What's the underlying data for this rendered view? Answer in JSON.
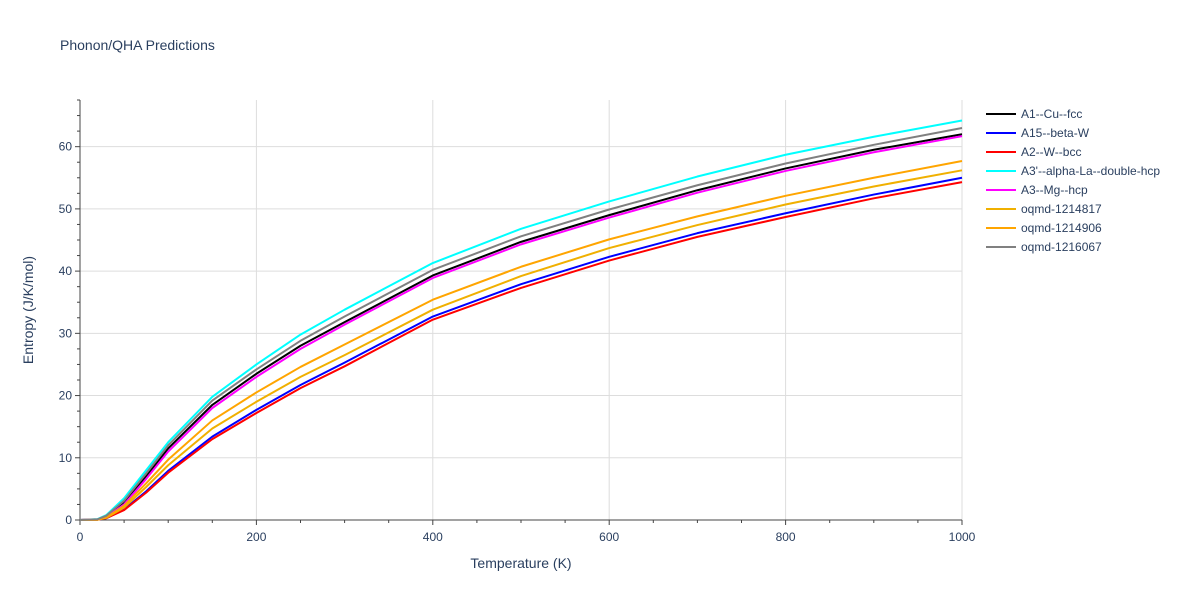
{
  "chart_data": {
    "type": "line",
    "title": "Phonon/QHA Predictions",
    "xlabel": "Temperature (K)",
    "ylabel": "Entropy (J/K/mol)",
    "xlim": [
      0,
      1000
    ],
    "ylim": [
      0,
      67.5
    ],
    "xticks": [
      0,
      200,
      400,
      600,
      800,
      1000
    ],
    "yticks": [
      0,
      10,
      20,
      30,
      40,
      50,
      60
    ],
    "grid": true,
    "legend_position": "right",
    "series": [
      {
        "name": "A1--Cu--fcc",
        "color": "#000000",
        "x": [
          0,
          20,
          30,
          50,
          75,
          100,
          150,
          200,
          250,
          300,
          400,
          500,
          600,
          700,
          800,
          900,
          1000
        ],
        "y": [
          0,
          0.1,
          0.6,
          2.8,
          7.0,
          11.5,
          18.5,
          23.5,
          28.0,
          31.8,
          39.3,
          44.7,
          49.0,
          53.0,
          56.5,
          59.5,
          62.0
        ]
      },
      {
        "name": "A15--beta-W",
        "color": "#0000ff",
        "x": [
          0,
          20,
          30,
          50,
          75,
          100,
          150,
          200,
          250,
          300,
          400,
          500,
          600,
          700,
          800,
          900,
          1000
        ],
        "y": [
          0,
          0.05,
          0.3,
          1.7,
          4.6,
          7.9,
          13.4,
          17.7,
          21.7,
          25.3,
          32.7,
          37.9,
          42.3,
          46.1,
          49.3,
          52.3,
          55.0
        ]
      },
      {
        "name": "A2--W--bcc",
        "color": "#ff0000",
        "x": [
          0,
          20,
          30,
          50,
          75,
          100,
          150,
          200,
          250,
          300,
          400,
          500,
          600,
          700,
          800,
          900,
          1000
        ],
        "y": [
          0,
          0.05,
          0.3,
          1.6,
          4.4,
          7.6,
          13.0,
          17.2,
          21.2,
          24.7,
          32.2,
          37.3,
          41.7,
          45.5,
          48.7,
          51.7,
          54.3
        ]
      },
      {
        "name": "A3'--alpha-La--double-hcp",
        "color": "#00ffff",
        "x": [
          0,
          20,
          30,
          50,
          75,
          100,
          150,
          200,
          250,
          300,
          400,
          500,
          600,
          700,
          800,
          900,
          1000
        ],
        "y": [
          0,
          0.15,
          0.8,
          3.5,
          8.0,
          12.5,
          19.8,
          25.0,
          29.8,
          33.8,
          41.3,
          46.8,
          51.2,
          55.2,
          58.7,
          61.6,
          64.2
        ]
      },
      {
        "name": "A3--Mg--hcp",
        "color": "#ff00ff",
        "x": [
          0,
          20,
          30,
          50,
          75,
          100,
          150,
          200,
          250,
          300,
          400,
          500,
          600,
          700,
          800,
          900,
          1000
        ],
        "y": [
          0,
          0.1,
          0.5,
          2.5,
          6.6,
          11.0,
          18.0,
          23.0,
          27.5,
          31.4,
          38.9,
          44.3,
          48.6,
          52.6,
          56.1,
          59.1,
          61.7
        ]
      },
      {
        "name": "oqmd-1214817",
        "color": "#f0b000",
        "x": [
          0,
          20,
          30,
          50,
          75,
          100,
          150,
          200,
          250,
          300,
          400,
          500,
          600,
          700,
          800,
          900,
          1000
        ],
        "y": [
          0,
          0.05,
          0.35,
          2.0,
          5.3,
          8.8,
          14.7,
          19.0,
          23.0,
          26.5,
          33.8,
          39.2,
          43.7,
          47.4,
          50.7,
          53.6,
          56.2
        ]
      },
      {
        "name": "oqmd-1214906",
        "color": "#ffa500",
        "x": [
          0,
          20,
          30,
          50,
          75,
          100,
          150,
          200,
          250,
          300,
          400,
          500,
          600,
          700,
          800,
          900,
          1000
        ],
        "y": [
          0,
          0.05,
          0.4,
          2.3,
          5.9,
          9.7,
          16.0,
          20.5,
          24.6,
          28.2,
          35.4,
          40.7,
          45.1,
          48.8,
          52.1,
          55.0,
          57.7
        ]
      },
      {
        "name": "oqmd-1216067",
        "color": "#808080",
        "x": [
          0,
          20,
          30,
          50,
          75,
          100,
          150,
          200,
          250,
          300,
          400,
          500,
          600,
          700,
          800,
          900,
          1000
        ],
        "y": [
          0,
          0.12,
          0.7,
          3.1,
          7.5,
          12.0,
          19.2,
          24.2,
          28.8,
          32.7,
          40.2,
          45.6,
          49.9,
          53.8,
          57.3,
          60.3,
          63.0
        ]
      }
    ]
  }
}
